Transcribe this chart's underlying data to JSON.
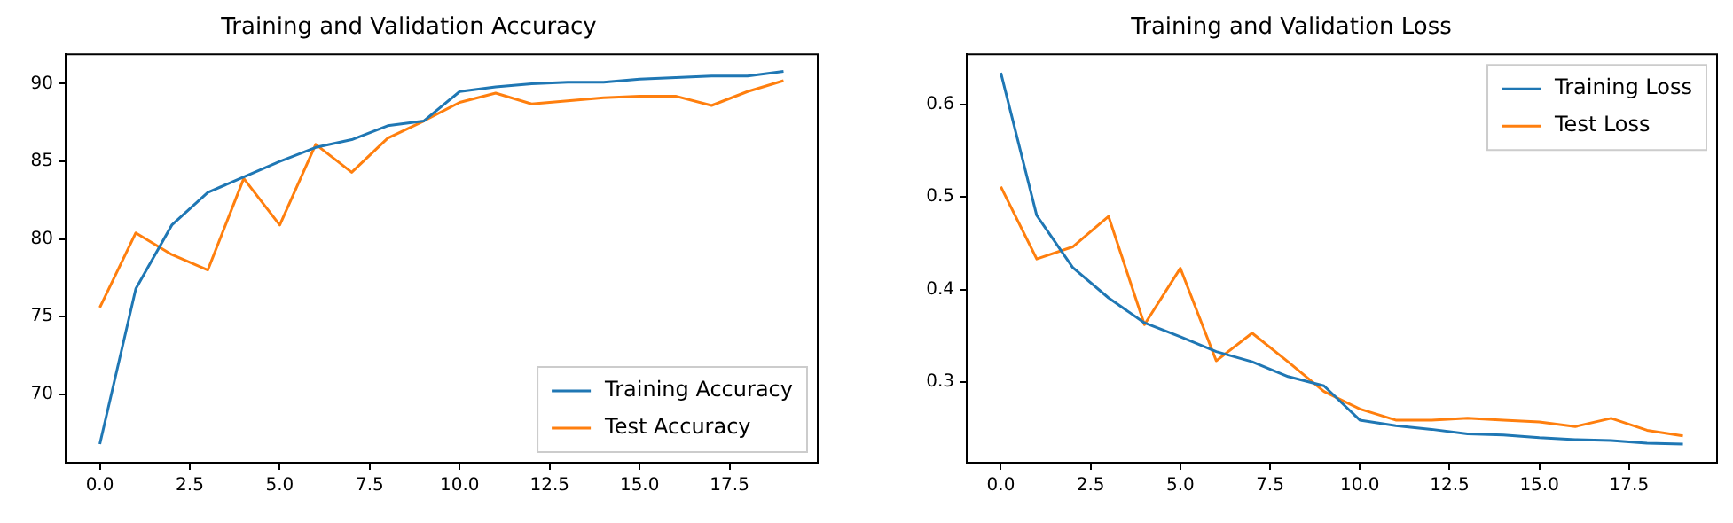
{
  "chart_data": [
    {
      "type": "line",
      "title": "Training and Validation Accuracy",
      "x": [
        0,
        1,
        2,
        3,
        4,
        5,
        6,
        7,
        8,
        9,
        10,
        11,
        12,
        13,
        14,
        15,
        16,
        17,
        18,
        19
      ],
      "series": [
        {
          "name": "Training Accuracy",
          "color": "#1f77b4",
          "values": [
            66.8,
            76.8,
            80.9,
            83.0,
            84.0,
            85.0,
            85.9,
            86.4,
            87.3,
            87.6,
            89.5,
            89.8,
            90.0,
            90.1,
            90.1,
            90.3,
            90.4,
            90.5,
            90.5,
            90.8
          ]
        },
        {
          "name": "Test Accuracy",
          "color": "#ff7f0e",
          "values": [
            75.6,
            80.4,
            79.0,
            78.0,
            83.9,
            80.9,
            86.1,
            84.3,
            86.5,
            87.6,
            88.8,
            89.4,
            88.7,
            88.9,
            89.1,
            89.2,
            89.2,
            88.6,
            89.5,
            90.2
          ]
        }
      ],
      "xlim": [
        -0.95,
        19.95
      ],
      "xticks": [
        {
          "value": 0,
          "label": "0.0"
        },
        {
          "value": 2.5,
          "label": "2.5"
        },
        {
          "value": 5,
          "label": "5.0"
        },
        {
          "value": 7.5,
          "label": "7.5"
        },
        {
          "value": 10,
          "label": "10.0"
        },
        {
          "value": 12.5,
          "label": "12.5"
        },
        {
          "value": 15,
          "label": "15.0"
        },
        {
          "value": 17.5,
          "label": "17.5"
        }
      ],
      "ylim": [
        65.6,
        91.9
      ],
      "yticks": [
        70,
        75,
        80,
        85,
        90
      ],
      "grid": false,
      "legend": "bottom right"
    },
    {
      "type": "line",
      "title": "Training and Validation Loss",
      "x": [
        0,
        1,
        2,
        3,
        4,
        5,
        6,
        7,
        8,
        9,
        10,
        11,
        12,
        13,
        14,
        15,
        16,
        17,
        18,
        19
      ],
      "series": [
        {
          "name": "Training Loss",
          "color": "#1f77b4",
          "values": [
            0.634,
            0.48,
            0.424,
            0.391,
            0.364,
            0.349,
            0.333,
            0.322,
            0.306,
            0.296,
            0.259,
            0.253,
            0.249,
            0.244,
            0.243,
            0.24,
            0.238,
            0.237,
            0.234,
            0.233
          ]
        },
        {
          "name": "Test Loss",
          "color": "#ff7f0e",
          "values": [
            0.511,
            0.433,
            0.446,
            0.479,
            0.362,
            0.423,
            0.323,
            0.353,
            0.322,
            0.29,
            0.271,
            0.259,
            0.259,
            0.261,
            0.259,
            0.257,
            0.252,
            0.261,
            0.248,
            0.242
          ]
        }
      ],
      "xlim": [
        -0.95,
        19.95
      ],
      "xticks": [
        {
          "value": 0,
          "label": "0.0"
        },
        {
          "value": 2.5,
          "label": "2.5"
        },
        {
          "value": 5,
          "label": "5.0"
        },
        {
          "value": 7.5,
          "label": "7.5"
        },
        {
          "value": 10,
          "label": "10.0"
        },
        {
          "value": 12.5,
          "label": "12.5"
        },
        {
          "value": 15,
          "label": "15.0"
        },
        {
          "value": 17.5,
          "label": "17.5"
        }
      ],
      "ylim": [
        0.213,
        0.654
      ],
      "yticks": [
        0.3,
        0.4,
        0.5,
        0.6
      ],
      "grid": false,
      "legend": "top right"
    }
  ]
}
